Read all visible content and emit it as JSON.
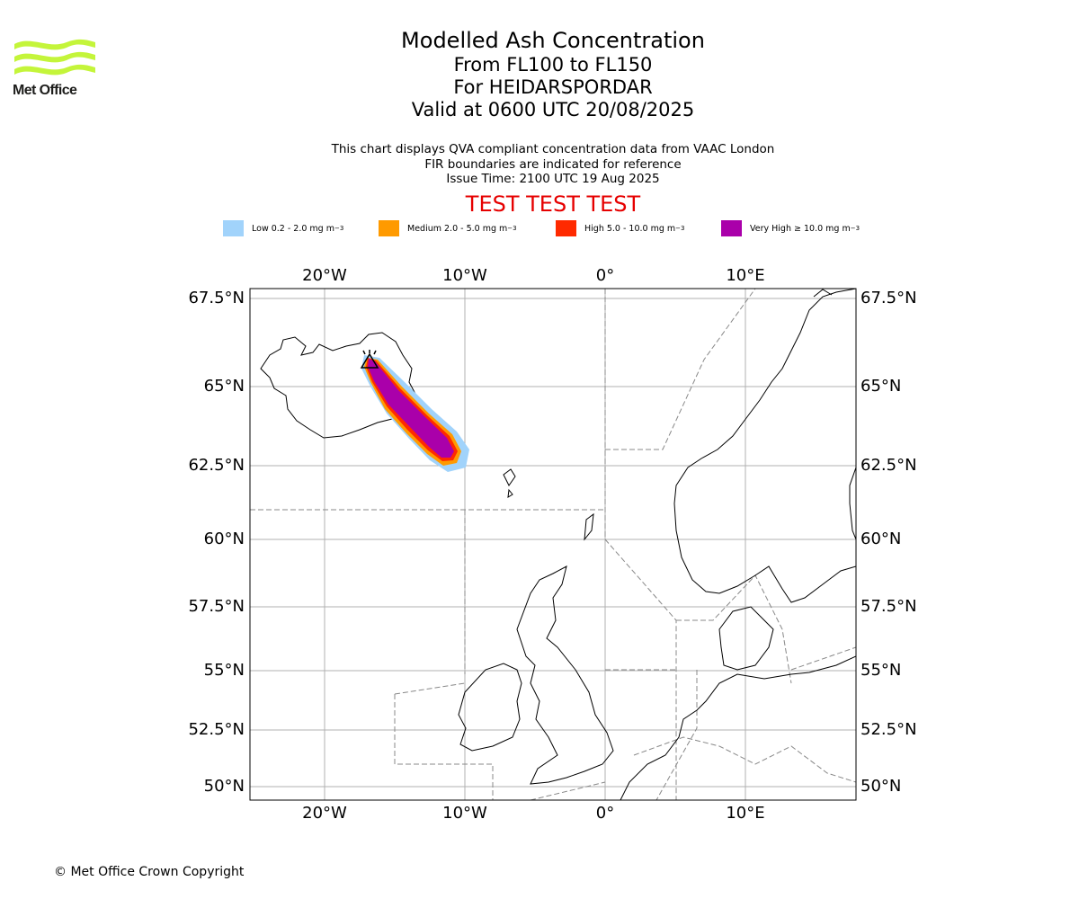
{
  "header": {
    "logo_text": "Met Office",
    "title": "Modelled Ash Concentration",
    "level_range": "From FL100 to FL150",
    "volcano": "For HEIDARSPORDAR",
    "valid": "Valid at 0600 UTC 20/08/2025"
  },
  "notes": {
    "line1": "This chart displays QVA compliant concentration data from VAAC London",
    "line2": "FIR boundaries are indicated for reference",
    "line3": "Issue Time: 2100 UTC 19 Aug 2025"
  },
  "test_banner": "TEST TEST TEST",
  "legend": [
    {
      "label": "Low 0.2 - 2.0 mg m",
      "unit_sup": "−3",
      "color": "#a1d3fb"
    },
    {
      "label": "Medium 2.0 - 5.0 mg m",
      "unit_sup": "−3",
      "color": "#ff9a00"
    },
    {
      "label": "High 5.0 - 10.0 mg m",
      "unit_sup": "−3",
      "color": "#ff2a00"
    },
    {
      "label": "Very High ≥ 10.0 mg m",
      "unit_sup": "−3",
      "color": "#aa00aa"
    }
  ],
  "axes": {
    "lon_ticks": [
      "20°W",
      "10°W",
      "0°",
      "10°E"
    ],
    "lat_ticks": [
      "67.5°N",
      "65°N",
      "62.5°N",
      "60°N",
      "57.5°N",
      "55°N",
      "52.5°N",
      "50°N"
    ]
  },
  "footer": {
    "copyright": "© Met Office Crown Copyright"
  }
}
